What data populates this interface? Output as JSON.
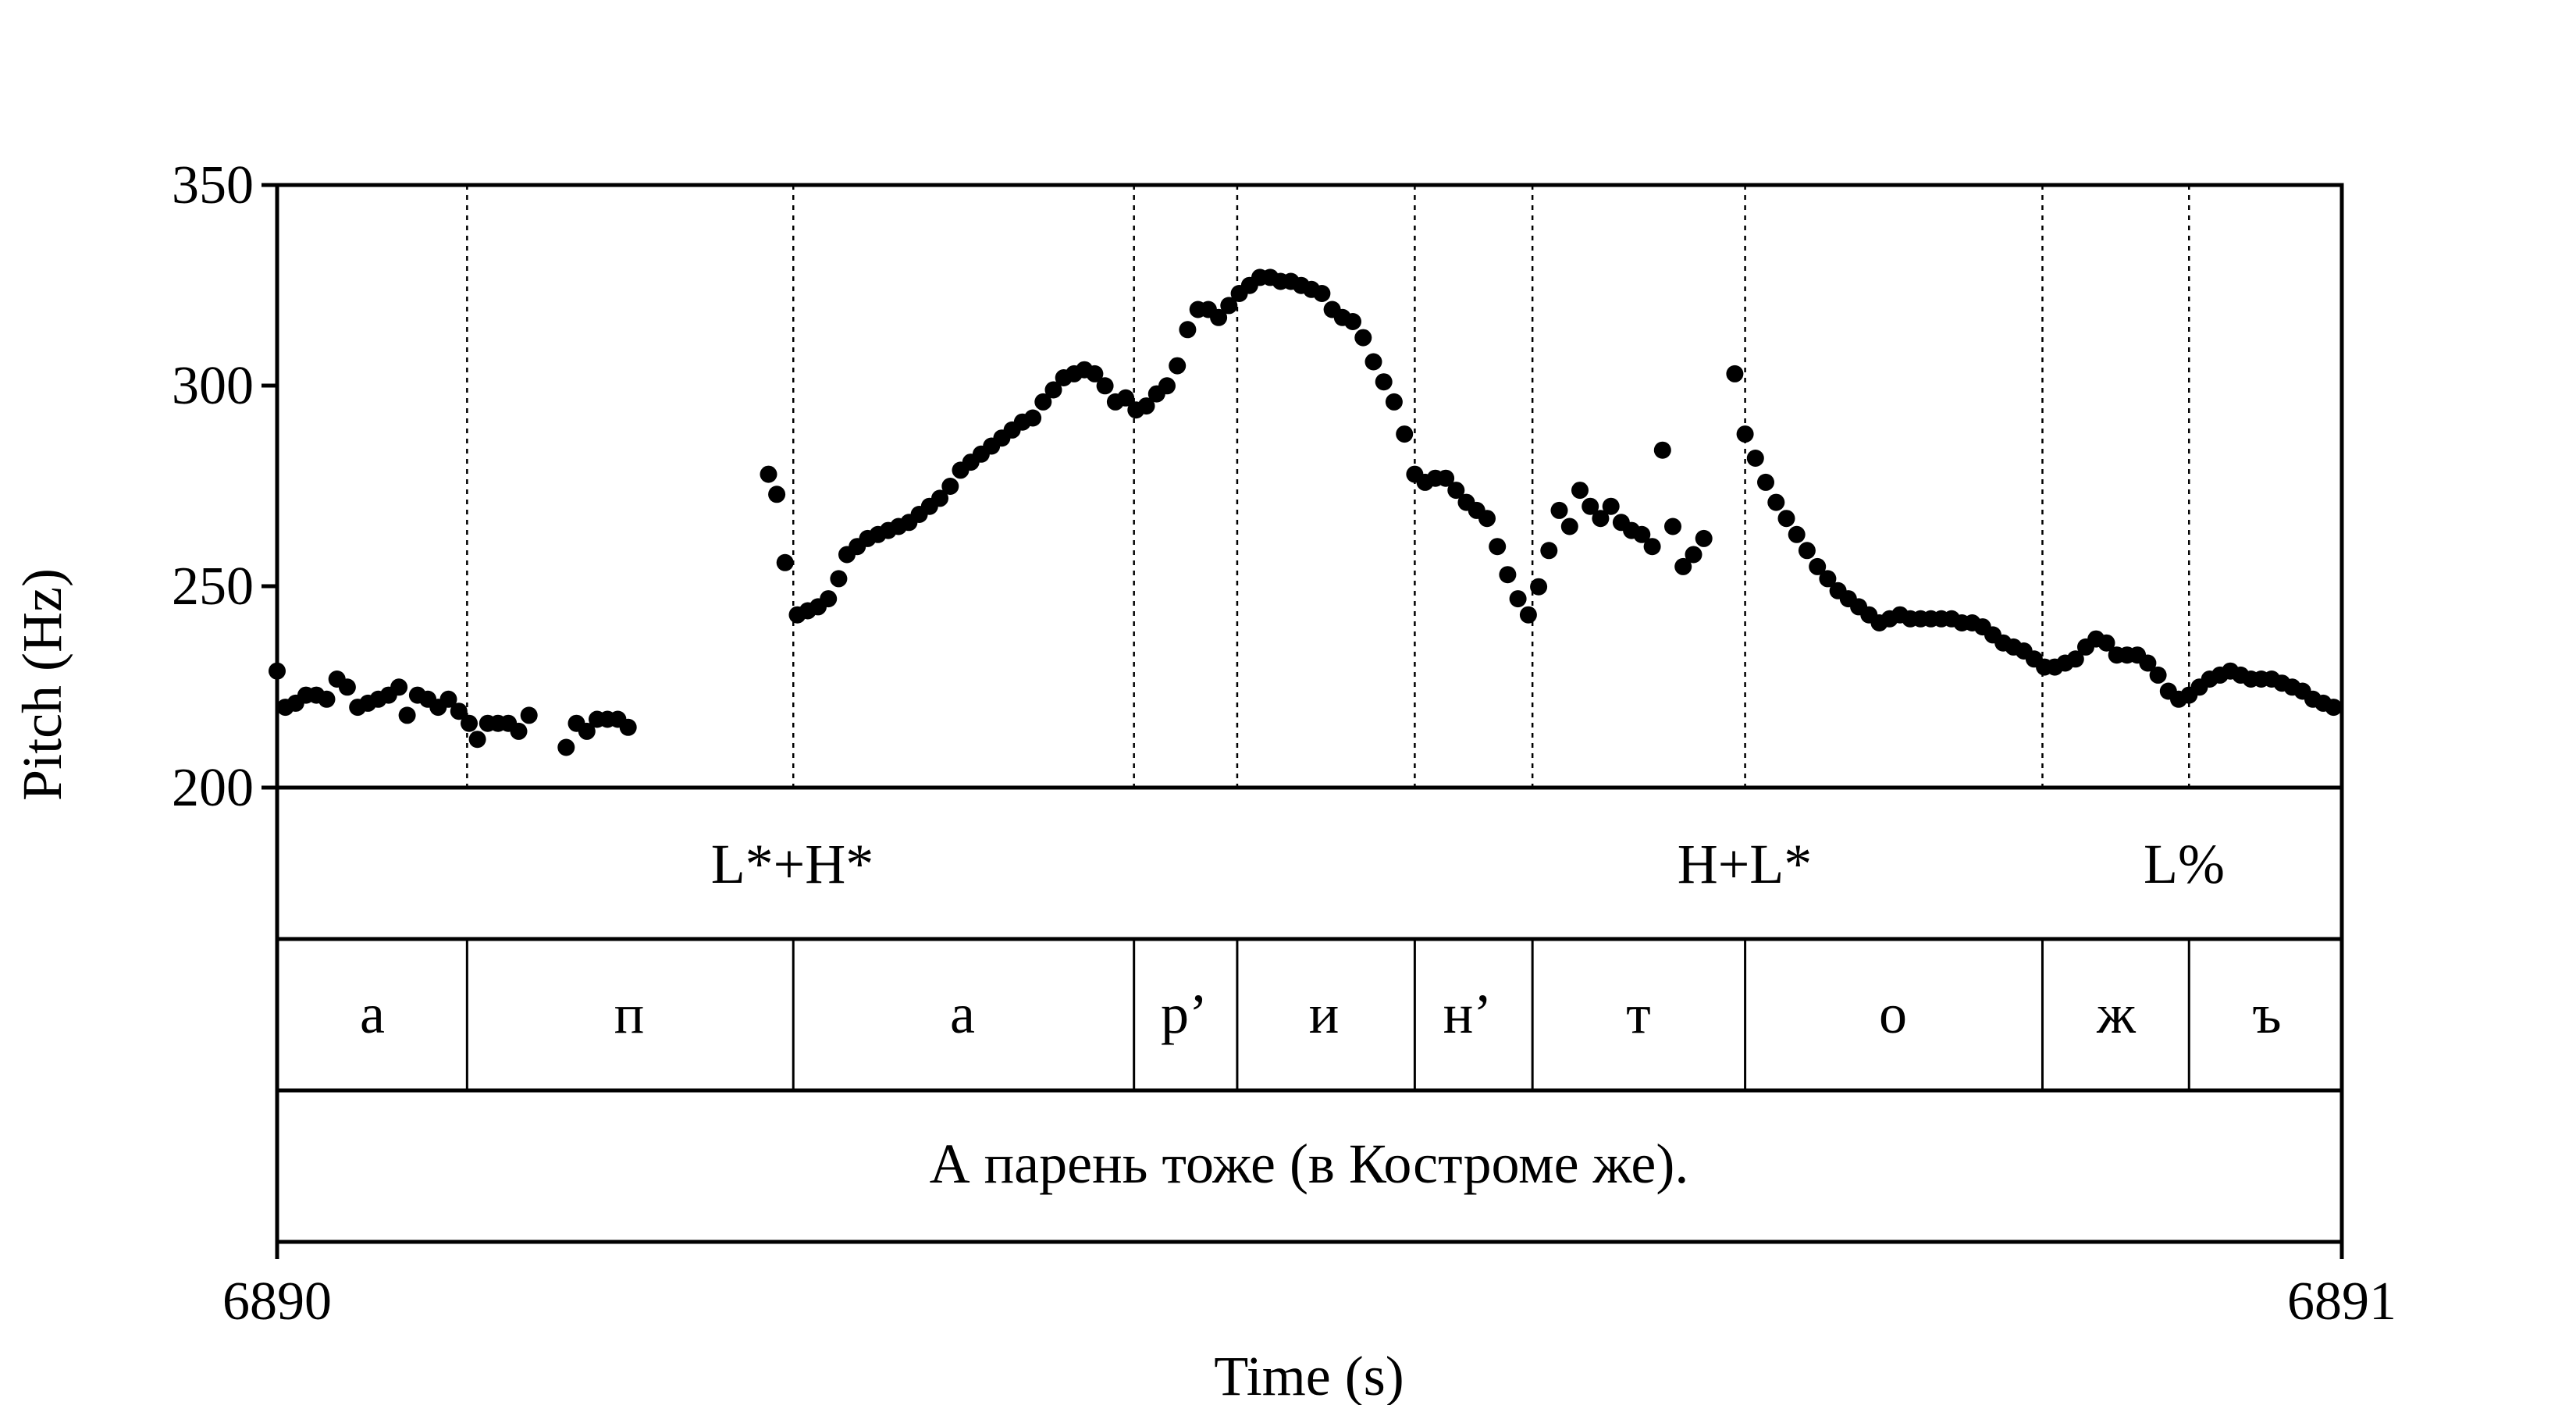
{
  "chart_data": {
    "type": "scatter",
    "ylabel": "Pitch (Hz)",
    "xlabel": "Time (s)",
    "ylim": [
      200,
      350
    ],
    "yticks": [
      "200",
      "250",
      "300",
      "350"
    ],
    "xlim": [
      6890,
      6891
    ],
    "xticks": [
      "6890",
      "6891"
    ],
    "grid": false,
    "boundaries": [
      0.092,
      0.25,
      0.415,
      0.465,
      0.551,
      0.608,
      0.711,
      0.855,
      0.926
    ],
    "pitch_points": [
      [
        0.0,
        229
      ],
      [
        0.004,
        220
      ],
      [
        0.009,
        221
      ],
      [
        0.014,
        223
      ],
      [
        0.019,
        223
      ],
      [
        0.024,
        222
      ],
      [
        0.029,
        227
      ],
      [
        0.034,
        225
      ],
      [
        0.039,
        220
      ],
      [
        0.044,
        221
      ],
      [
        0.049,
        222
      ],
      [
        0.054,
        223
      ],
      [
        0.059,
        225
      ],
      [
        0.063,
        218
      ],
      [
        0.068,
        223
      ],
      [
        0.073,
        222
      ],
      [
        0.078,
        220
      ],
      [
        0.083,
        222
      ],
      [
        0.088,
        219
      ],
      [
        0.093,
        216
      ],
      [
        0.097,
        212
      ],
      [
        0.102,
        216
      ],
      [
        0.107,
        216
      ],
      [
        0.112,
        216
      ],
      [
        0.117,
        214
      ],
      [
        0.122,
        218
      ],
      [
        0.14,
        210
      ],
      [
        0.145,
        216
      ],
      [
        0.15,
        214
      ],
      [
        0.155,
        217
      ],
      [
        0.16,
        217
      ],
      [
        0.165,
        217
      ],
      [
        0.17,
        215
      ],
      [
        0.238,
        278
      ],
      [
        0.242,
        273
      ],
      [
        0.246,
        256
      ],
      [
        0.252,
        243
      ],
      [
        0.257,
        244
      ],
      [
        0.262,
        245
      ],
      [
        0.267,
        247
      ],
      [
        0.272,
        252
      ],
      [
        0.276,
        258
      ],
      [
        0.281,
        260
      ],
      [
        0.286,
        262
      ],
      [
        0.291,
        263
      ],
      [
        0.296,
        264
      ],
      [
        0.301,
        265
      ],
      [
        0.306,
        266
      ],
      [
        0.311,
        268
      ],
      [
        0.316,
        270
      ],
      [
        0.321,
        272
      ],
      [
        0.326,
        275
      ],
      [
        0.331,
        279
      ],
      [
        0.336,
        281
      ],
      [
        0.341,
        283
      ],
      [
        0.346,
        285
      ],
      [
        0.351,
        287
      ],
      [
        0.356,
        289
      ],
      [
        0.361,
        291
      ],
      [
        0.366,
        292
      ],
      [
        0.371,
        296
      ],
      [
        0.376,
        299
      ],
      [
        0.381,
        302
      ],
      [
        0.386,
        303
      ],
      [
        0.391,
        304
      ],
      [
        0.396,
        303
      ],
      [
        0.401,
        300
      ],
      [
        0.406,
        296
      ],
      [
        0.411,
        297
      ],
      [
        0.416,
        294
      ],
      [
        0.421,
        295
      ],
      [
        0.426,
        298
      ],
      [
        0.431,
        300
      ],
      [
        0.436,
        305
      ],
      [
        0.441,
        314
      ],
      [
        0.446,
        319
      ],
      [
        0.451,
        319
      ],
      [
        0.456,
        317
      ],
      [
        0.461,
        320
      ],
      [
        0.466,
        323
      ],
      [
        0.471,
        325
      ],
      [
        0.476,
        327
      ],
      [
        0.481,
        327
      ],
      [
        0.486,
        326
      ],
      [
        0.491,
        326
      ],
      [
        0.496,
        325
      ],
      [
        0.501,
        324
      ],
      [
        0.506,
        323
      ],
      [
        0.511,
        319
      ],
      [
        0.516,
        317
      ],
      [
        0.521,
        316
      ],
      [
        0.526,
        312
      ],
      [
        0.531,
        306
      ],
      [
        0.536,
        301
      ],
      [
        0.541,
        296
      ],
      [
        0.546,
        288
      ],
      [
        0.551,
        278
      ],
      [
        0.556,
        276
      ],
      [
        0.561,
        277
      ],
      [
        0.566,
        277
      ],
      [
        0.571,
        274
      ],
      [
        0.576,
        271
      ],
      [
        0.581,
        269
      ],
      [
        0.586,
        267
      ],
      [
        0.591,
        260
      ],
      [
        0.596,
        253
      ],
      [
        0.601,
        247
      ],
      [
        0.606,
        243
      ],
      [
        0.611,
        250
      ],
      [
        0.616,
        259
      ],
      [
        0.621,
        269
      ],
      [
        0.626,
        265
      ],
      [
        0.631,
        274
      ],
      [
        0.636,
        270
      ],
      [
        0.641,
        267
      ],
      [
        0.646,
        270
      ],
      [
        0.651,
        266
      ],
      [
        0.656,
        264
      ],
      [
        0.661,
        263
      ],
      [
        0.666,
        260
      ],
      [
        0.671,
        284
      ],
      [
        0.676,
        265
      ],
      [
        0.681,
        255
      ],
      [
        0.686,
        258
      ],
      [
        0.691,
        262
      ],
      [
        0.706,
        303
      ],
      [
        0.711,
        288
      ],
      [
        0.716,
        282
      ],
      [
        0.721,
        276
      ],
      [
        0.726,
        271
      ],
      [
        0.731,
        267
      ],
      [
        0.736,
        263
      ],
      [
        0.741,
        259
      ],
      [
        0.746,
        255
      ],
      [
        0.751,
        252
      ],
      [
        0.756,
        249
      ],
      [
        0.761,
        247
      ],
      [
        0.766,
        245
      ],
      [
        0.771,
        243
      ],
      [
        0.776,
        241
      ],
      [
        0.781,
        242
      ],
      [
        0.786,
        243
      ],
      [
        0.791,
        242
      ],
      [
        0.796,
        242
      ],
      [
        0.801,
        242
      ],
      [
        0.806,
        242
      ],
      [
        0.811,
        242
      ],
      [
        0.816,
        241
      ],
      [
        0.821,
        241
      ],
      [
        0.826,
        240
      ],
      [
        0.831,
        238
      ],
      [
        0.836,
        236
      ],
      [
        0.841,
        235
      ],
      [
        0.846,
        234
      ],
      [
        0.851,
        232
      ],
      [
        0.856,
        230
      ],
      [
        0.861,
        230
      ],
      [
        0.866,
        231
      ],
      [
        0.871,
        232
      ],
      [
        0.876,
        235
      ],
      [
        0.881,
        237
      ],
      [
        0.886,
        236
      ],
      [
        0.891,
        233
      ],
      [
        0.896,
        233
      ],
      [
        0.901,
        233
      ],
      [
        0.906,
        231
      ],
      [
        0.911,
        228
      ],
      [
        0.916,
        224
      ],
      [
        0.921,
        222
      ],
      [
        0.926,
        223
      ],
      [
        0.931,
        225
      ],
      [
        0.936,
        227
      ],
      [
        0.941,
        228
      ],
      [
        0.946,
        229
      ],
      [
        0.951,
        228
      ],
      [
        0.956,
        227
      ],
      [
        0.961,
        227
      ],
      [
        0.966,
        227
      ],
      [
        0.971,
        226
      ],
      [
        0.976,
        225
      ],
      [
        0.981,
        224
      ],
      [
        0.986,
        222
      ],
      [
        0.991,
        221
      ],
      [
        0.996,
        220
      ]
    ],
    "tiers": {
      "tones": [
        {
          "label": "L*+H*",
          "x": 0.25
        },
        {
          "label": "H+L*",
          "x": 0.711
        },
        {
          "label": "L%",
          "x": 0.926
        }
      ],
      "segments": [
        "а",
        "п",
        "а",
        "р’",
        "и",
        "н’",
        "т",
        "о",
        "ж",
        "ъ"
      ],
      "sentence": "А парень тоже (в Костроме же)."
    }
  }
}
